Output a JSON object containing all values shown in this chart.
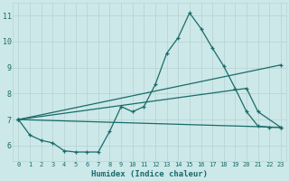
{
  "xlabel": "Humidex (Indice chaleur)",
  "background_color": "#cce8e8",
  "grid_color": "#b8d4d4",
  "line_color": "#1a6b6b",
  "xlim": [
    -0.5,
    23.5
  ],
  "ylim": [
    5.4,
    11.5
  ],
  "xticks": [
    0,
    1,
    2,
    3,
    4,
    5,
    6,
    7,
    8,
    9,
    10,
    11,
    12,
    13,
    14,
    15,
    16,
    17,
    18,
    19,
    20,
    21,
    22,
    23
  ],
  "yticks": [
    6,
    7,
    8,
    9,
    10,
    11
  ],
  "line1_x": [
    0,
    1,
    2,
    3,
    4,
    5,
    6,
    7,
    8,
    9,
    10,
    11,
    12,
    13,
    14,
    15,
    16,
    17,
    18,
    19,
    20,
    21,
    22,
    23
  ],
  "line1_y": [
    7.0,
    6.4,
    6.2,
    6.1,
    5.8,
    5.75,
    5.75,
    5.75,
    6.55,
    7.5,
    7.3,
    7.5,
    8.35,
    9.55,
    10.15,
    11.1,
    10.5,
    9.75,
    9.05,
    8.2,
    7.3,
    6.75,
    6.7,
    6.7
  ],
  "line2_x": [
    0,
    23
  ],
  "line2_y": [
    7.0,
    6.7
  ],
  "line3_x": [
    0,
    23
  ],
  "line3_y": [
    7.0,
    9.1
  ],
  "line4_x": [
    0,
    20,
    21,
    23
  ],
  "line4_y": [
    7.0,
    8.2,
    7.3,
    6.7
  ]
}
